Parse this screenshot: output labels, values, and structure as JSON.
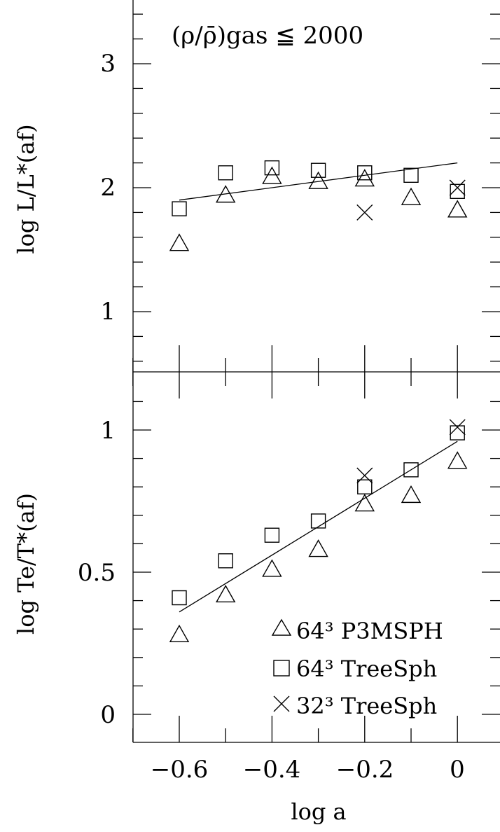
{
  "chart_data": [
    {
      "panel": "top",
      "type": "scatter",
      "ylabel": "log L/L*(af)",
      "annotation": "(ρ/ρ̄)gas ≦ 2000",
      "xlim": [
        -0.7,
        0.08
      ],
      "ylim": [
        0.5,
        3.5
      ],
      "y_ticks": [
        1,
        2,
        3
      ],
      "series": [
        {
          "name": "64³ P3MSPH",
          "marker": "triangle",
          "x": [
            -0.6,
            -0.5,
            -0.4,
            -0.3,
            -0.2,
            -0.1,
            0.0
          ],
          "y": [
            1.55,
            1.94,
            2.09,
            2.05,
            2.07,
            1.92,
            1.82
          ]
        },
        {
          "name": "64³ TreeSph",
          "marker": "square",
          "x": [
            -0.6,
            -0.5,
            -0.4,
            -0.3,
            -0.2,
            -0.1,
            0.0
          ],
          "y": [
            1.83,
            2.12,
            2.16,
            2.14,
            2.12,
            2.1,
            1.97
          ]
        },
        {
          "name": "32³ TreeSph",
          "marker": "cross",
          "x": [
            -0.2,
            0.0
          ],
          "y": [
            1.8,
            2.0
          ]
        }
      ],
      "fit_line": {
        "x": [
          -0.6,
          0.0
        ],
        "y": [
          1.9,
          2.2
        ]
      }
    },
    {
      "panel": "bottom",
      "type": "scatter",
      "xlabel": "log a",
      "ylabel": "log Te/T*(af)",
      "xlim": [
        -0.7,
        0.08
      ],
      "ylim": [
        -0.1,
        1.2
      ],
      "x_ticks": [
        -0.6,
        -0.4,
        -0.2,
        0
      ],
      "x_tick_labels": [
        "−0.6",
        "−0.4",
        "−0.2",
        "0"
      ],
      "y_ticks": [
        0,
        0.5,
        1
      ],
      "y_tick_labels": [
        "0",
        "0.5",
        "1"
      ],
      "series": [
        {
          "name": "64³ P3MSPH",
          "marker": "triangle",
          "x": [
            -0.6,
            -0.5,
            -0.4,
            -0.3,
            -0.2,
            -0.1,
            0.0
          ],
          "y": [
            0.28,
            0.42,
            0.51,
            0.58,
            0.74,
            0.77,
            0.89
          ]
        },
        {
          "name": "64³ TreeSph",
          "marker": "square",
          "x": [
            -0.6,
            -0.5,
            -0.4,
            -0.3,
            -0.2,
            -0.1,
            0.0
          ],
          "y": [
            0.41,
            0.54,
            0.63,
            0.68,
            0.8,
            0.86,
            0.99
          ]
        },
        {
          "name": "32³ TreeSph",
          "marker": "cross",
          "x": [
            -0.2,
            0.0
          ],
          "y": [
            0.84,
            1.01
          ]
        }
      ],
      "fit_line": {
        "x": [
          -0.6,
          0.0
        ],
        "y": [
          0.36,
          0.96
        ]
      },
      "legend": {
        "placement": "bottom-right",
        "entries": [
          {
            "marker": "triangle",
            "label": "64³  P3MSPH"
          },
          {
            "marker": "square",
            "label": "64³  TreeSph"
          },
          {
            "marker": "cross",
            "label": "32³  TreeSph"
          }
        ]
      }
    }
  ],
  "labels": {
    "top_y_ticks": [
      "1",
      "2",
      "3"
    ],
    "bottom_y_ticks": [
      "0",
      "0.5",
      "1"
    ],
    "x_ticks": [
      "−0.6",
      "−0.4",
      "−0.2",
      "0"
    ]
  }
}
